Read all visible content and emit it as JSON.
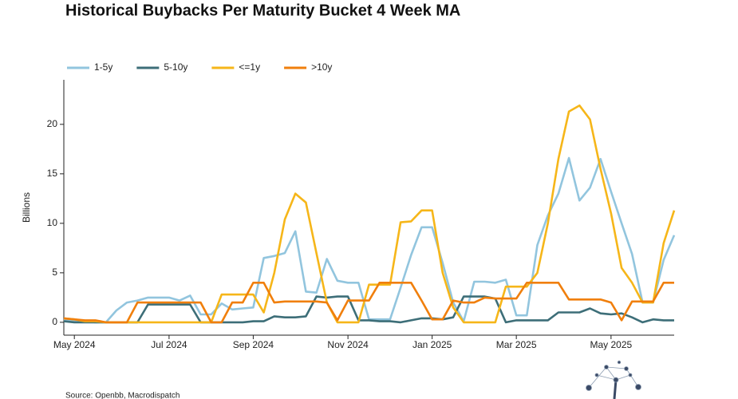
{
  "chart_data": {
    "type": "line",
    "title": "Historical Buybacks Per Maturity Bucket 4 Week MA",
    "y_label": "Billions",
    "source": "Source: Openbb, Macrodispatch",
    "categories": [
      null,
      "May 2024",
      null,
      null,
      null,
      null,
      null,
      null,
      null,
      null,
      "Jul 2024",
      null,
      null,
      null,
      null,
      null,
      null,
      null,
      "Sep 2024",
      null,
      null,
      null,
      null,
      null,
      null,
      null,
      null,
      "Nov 2024",
      null,
      null,
      null,
      null,
      null,
      null,
      null,
      "Jan 2025",
      null,
      null,
      null,
      null,
      null,
      null,
      null,
      "Mar 2025",
      null,
      null,
      null,
      null,
      null,
      null,
      null,
      null,
      "May 2025",
      null,
      null,
      null,
      null,
      null,
      null
    ],
    "series": [
      {
        "name": "1-5y",
        "color": "#92c5de",
        "values": [
          0.3,
          0.1,
          0.1,
          0,
          0,
          1.2,
          2.0,
          2.2,
          2.5,
          2.5,
          2.5,
          2.2,
          2.7,
          0.8,
          0.8,
          1.9,
          1.3,
          1.4,
          1.5,
          6.5,
          6.7,
          7.0,
          9.2,
          3.1,
          3.0,
          6.4,
          4.2,
          4.0,
          4.0,
          0.3,
          0.3,
          0.3,
          3.5,
          6.8,
          9.6,
          9.6,
          6.0,
          2.0,
          0.1,
          4.1,
          4.1,
          4.0,
          4.3,
          0.7,
          0.7,
          7.8,
          10.8,
          13.0,
          16.6,
          12.3,
          13.6,
          16.5,
          13.2,
          10.0,
          6.9,
          2.0,
          2.0,
          6.3,
          8.8
        ]
      },
      {
        "name": "5-10y",
        "color": "#3d6e78",
        "values": [
          0.1,
          0,
          0,
          0,
          0,
          0,
          0,
          0,
          1.8,
          1.8,
          1.8,
          1.8,
          1.8,
          0,
          0,
          0,
          0,
          0,
          0.1,
          0.1,
          0.6,
          0.5,
          0.5,
          0.6,
          2.6,
          2.5,
          2.6,
          2.6,
          0.2,
          0.2,
          0.1,
          0.1,
          0,
          0.2,
          0.4,
          0.4,
          0.3,
          0.5,
          2.6,
          2.6,
          2.6,
          2.4,
          0,
          0.2,
          0.2,
          0.2,
          0.2,
          1.0,
          1.0,
          1.0,
          1.4,
          0.9,
          0.8,
          0.9,
          0.5,
          0,
          0.3,
          0.2,
          0.2
        ]
      },
      {
        "name": "<=1y",
        "color": "#f6b619",
        "values": [
          0.4,
          0.3,
          0.1,
          0.1,
          0,
          0,
          0,
          0,
          0,
          0,
          0,
          0,
          0,
          0,
          0,
          2.8,
          2.8,
          2.8,
          2.8,
          1.0,
          5.0,
          10.4,
          13.0,
          12.1,
          7.0,
          2.0,
          0,
          0,
          0,
          3.8,
          3.8,
          3.8,
          10.1,
          10.2,
          11.3,
          11.3,
          5.0,
          1.5,
          0,
          0,
          0,
          0,
          3.6,
          3.6,
          3.6,
          5.0,
          10.0,
          16.5,
          21.3,
          21.9,
          20.5,
          15.5,
          11.0,
          5.5,
          4.0,
          2.0,
          2.0,
          8.0,
          11.3
        ]
      },
      {
        "name": ">10y",
        "color": "#f07f0c",
        "values": [
          0.4,
          0.3,
          0.2,
          0.2,
          0,
          0,
          0,
          2.0,
          2.0,
          2.0,
          2.0,
          2.0,
          2.0,
          2.0,
          0,
          0,
          2.0,
          2.0,
          4.0,
          4.0,
          2.0,
          2.1,
          2.1,
          2.1,
          2.1,
          2.0,
          0.2,
          2.2,
          2.2,
          2.2,
          4.0,
          4.0,
          4.0,
          4.0,
          2.2,
          0.3,
          0.3,
          2.2,
          2.0,
          2.0,
          2.5,
          2.4,
          2.4,
          2.4,
          4.0,
          4.0,
          4.0,
          4.0,
          2.3,
          2.3,
          2.3,
          2.3,
          2.0,
          0.2,
          2.1,
          2.1,
          2.1,
          4.0,
          4.0
        ]
      }
    ],
    "ylim": [
      -1.3,
      24.5
    ],
    "yticks": [
      0,
      5,
      10,
      15,
      20
    ],
    "legend": "top-left"
  }
}
